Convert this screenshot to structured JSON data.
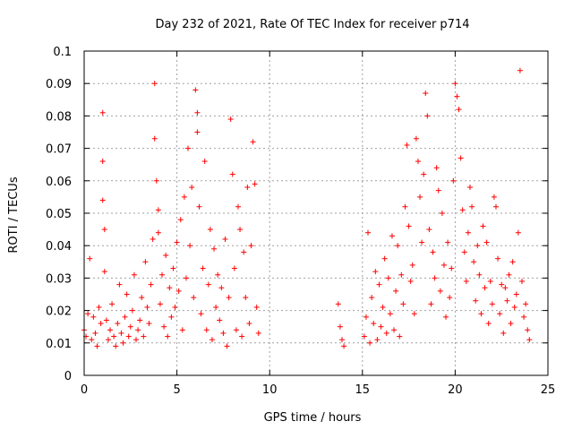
{
  "chart_data": {
    "type": "scatter",
    "title": "Day 232 of 2021, Rate Of TEC Index for receiver p714",
    "xlabel": "GPS time / hours",
    "ylabel": "ROTI / TECUs",
    "xlim": [
      0,
      25
    ],
    "ylim": [
      0,
      0.1
    ],
    "xticks": [
      "0",
      "5",
      "10",
      "15",
      "20",
      "25"
    ],
    "yticks": [
      "0",
      "0.01",
      "0.02",
      "0.03",
      "0.04",
      "0.05",
      "0.06",
      "0.07",
      "0.08",
      "0.09",
      "0.1"
    ],
    "grid": true,
    "marker": "+",
    "color": "#ff0000",
    "series": [
      {
        "x": [
          0.0,
          0.1,
          0.2,
          0.3,
          0.4,
          0.5,
          0.6,
          0.7,
          0.8,
          0.9,
          1.0,
          1.0,
          1.0,
          1.1,
          1.1,
          1.2,
          1.3,
          1.4,
          1.5,
          1.6,
          1.7,
          1.8,
          1.9,
          2.0,
          2.1,
          2.2,
          2.3,
          2.4,
          2.5,
          2.6,
          2.7,
          2.8,
          2.9,
          3.0,
          3.1,
          3.2,
          3.3,
          3.4,
          3.5,
          3.6,
          3.7,
          3.8,
          3.8,
          3.9,
          4.0,
          4.0,
          4.1,
          4.2,
          4.3,
          4.4,
          4.5,
          4.6,
          4.7,
          4.8,
          4.9,
          5.0,
          5.1,
          5.2,
          5.3,
          5.4,
          5.5,
          5.6,
          5.7,
          5.8,
          5.9,
          6.0,
          6.1,
          6.1,
          6.2,
          6.3,
          6.4,
          6.5,
          6.6,
          6.7,
          6.8,
          6.9,
          7.0,
          7.1,
          7.2,
          7.3,
          7.4,
          7.5,
          7.6,
          7.7,
          7.8,
          7.9,
          8.0,
          8.1,
          8.2,
          8.3,
          8.4,
          8.5,
          8.6,
          8.7,
          8.8,
          8.9,
          9.0,
          9.1,
          9.2,
          9.3,
          9.4,
          13.7,
          13.8,
          13.9,
          14.0,
          15.1,
          15.2,
          15.3,
          15.4,
          15.5,
          15.6,
          15.7,
          15.8,
          15.9,
          16.0,
          16.1,
          16.2,
          16.3,
          16.4,
          16.5,
          16.6,
          16.7,
          16.8,
          16.9,
          17.0,
          17.1,
          17.2,
          17.3,
          17.4,
          17.5,
          17.6,
          17.7,
          17.8,
          17.9,
          18.0,
          18.1,
          18.2,
          18.3,
          18.4,
          18.5,
          18.6,
          18.7,
          18.8,
          18.9,
          19.0,
          19.1,
          19.2,
          19.3,
          19.4,
          19.5,
          19.6,
          19.7,
          19.8,
          19.9,
          20.0,
          20.1,
          20.2,
          20.3,
          20.4,
          20.5,
          20.6,
          20.7,
          20.8,
          20.9,
          21.0,
          21.1,
          21.2,
          21.3,
          21.4,
          21.5,
          21.6,
          21.7,
          21.8,
          21.9,
          22.0,
          22.1,
          22.2,
          22.3,
          22.4,
          22.5,
          22.6,
          22.7,
          22.8,
          22.9,
          23.0,
          23.1,
          23.2,
          23.3,
          23.4,
          23.5,
          23.6,
          23.7,
          23.8,
          23.9,
          24.0
        ],
        "y": [
          0.014,
          0.012,
          0.019,
          0.036,
          0.011,
          0.018,
          0.013,
          0.009,
          0.021,
          0.016,
          0.081,
          0.066,
          0.054,
          0.045,
          0.032,
          0.017,
          0.011,
          0.014,
          0.022,
          0.012,
          0.009,
          0.016,
          0.028,
          0.013,
          0.01,
          0.018,
          0.025,
          0.012,
          0.015,
          0.02,
          0.031,
          0.011,
          0.014,
          0.017,
          0.024,
          0.012,
          0.035,
          0.021,
          0.016,
          0.028,
          0.042,
          0.09,
          0.073,
          0.06,
          0.051,
          0.044,
          0.022,
          0.031,
          0.015,
          0.037,
          0.012,
          0.027,
          0.018,
          0.033,
          0.021,
          0.041,
          0.026,
          0.048,
          0.014,
          0.055,
          0.03,
          0.07,
          0.04,
          0.058,
          0.024,
          0.088,
          0.075,
          0.081,
          0.052,
          0.019,
          0.033,
          0.066,
          0.014,
          0.028,
          0.045,
          0.011,
          0.039,
          0.021,
          0.031,
          0.017,
          0.027,
          0.013,
          0.042,
          0.009,
          0.024,
          0.079,
          0.062,
          0.033,
          0.014,
          0.052,
          0.045,
          0.012,
          0.038,
          0.024,
          0.058,
          0.016,
          0.04,
          0.072,
          0.059,
          0.021,
          0.013,
          0.022,
          0.015,
          0.011,
          0.009,
          0.012,
          0.018,
          0.044,
          0.01,
          0.024,
          0.016,
          0.032,
          0.011,
          0.028,
          0.015,
          0.021,
          0.036,
          0.013,
          0.03,
          0.019,
          0.043,
          0.014,
          0.026,
          0.04,
          0.012,
          0.031,
          0.022,
          0.052,
          0.071,
          0.046,
          0.029,
          0.034,
          0.019,
          0.073,
          0.066,
          0.055,
          0.041,
          0.062,
          0.087,
          0.08,
          0.045,
          0.022,
          0.038,
          0.03,
          0.064,
          0.057,
          0.026,
          0.05,
          0.034,
          0.018,
          0.041,
          0.024,
          0.033,
          0.06,
          0.09,
          0.086,
          0.082,
          0.067,
          0.051,
          0.038,
          0.029,
          0.044,
          0.058,
          0.052,
          0.035,
          0.023,
          0.04,
          0.031,
          0.019,
          0.046,
          0.027,
          0.041,
          0.016,
          0.029,
          0.022,
          0.055,
          0.052,
          0.036,
          0.019,
          0.028,
          0.013,
          0.027,
          0.023,
          0.031,
          0.016,
          0.035,
          0.021,
          0.025,
          0.044,
          0.094,
          0.029,
          0.018,
          0.022,
          0.014,
          0.011
        ]
      }
    ]
  }
}
